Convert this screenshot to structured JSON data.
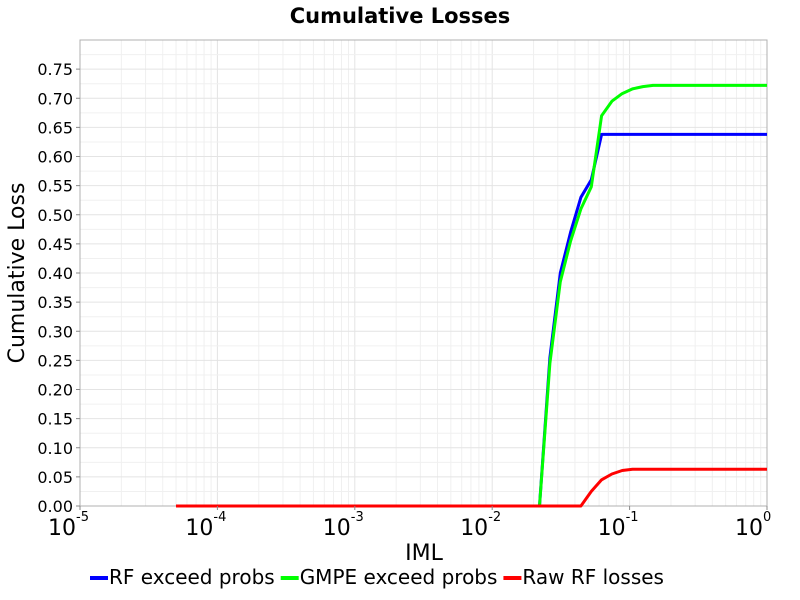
{
  "chart_data": {
    "type": "line",
    "title": "Cumulative Losses",
    "xlabel": "IML",
    "ylabel": "Cumulative Loss",
    "xscale": "log",
    "xlim": [
      1e-05,
      1
    ],
    "ylim": [
      0,
      0.8
    ],
    "grid": true,
    "legend_position": "bottom",
    "x_ticks": [
      {
        "base": "10",
        "exp": "-5",
        "value": 1e-05
      },
      {
        "base": "10",
        "exp": "-4",
        "value": 0.0001
      },
      {
        "base": "10",
        "exp": "-3",
        "value": 0.001
      },
      {
        "base": "10",
        "exp": "-2",
        "value": 0.01
      },
      {
        "base": "10",
        "exp": "-1",
        "value": 0.1
      },
      {
        "base": "10",
        "exp": "0",
        "value": 1
      }
    ],
    "y_ticks": [
      "0.00",
      "0.05",
      "0.10",
      "0.15",
      "0.20",
      "0.25",
      "0.30",
      "0.35",
      "0.40",
      "0.45",
      "0.50",
      "0.55",
      "0.60",
      "0.65",
      "0.70",
      "0.75"
    ],
    "series": [
      {
        "name": "RF exceed probs",
        "color": "#0000ff",
        "x": [
          0.0221,
          0.0263,
          0.0313,
          0.0372,
          0.0442,
          0.0526,
          0.0625,
          0.0743,
          0.0883,
          0.105,
          0.125,
          0.148,
          0.177,
          0.21,
          0.25,
          0.3,
          0.5,
          0.8,
          1.0
        ],
        "y": [
          0,
          0.255,
          0.4,
          0.47,
          0.53,
          0.56,
          0.638,
          0.638,
          0.638,
          0.638,
          0.638,
          0.638,
          0.638,
          0.638,
          0.638,
          0.638,
          0.638,
          0.638,
          0.638
        ]
      },
      {
        "name": "GMPE exceed probs",
        "color": "#00ff00",
        "x": [
          0.0221,
          0.0263,
          0.0313,
          0.0372,
          0.0442,
          0.0526,
          0.0625,
          0.0743,
          0.0883,
          0.105,
          0.125,
          0.148,
          0.177,
          0.21,
          0.25,
          0.3,
          0.5,
          0.8,
          1.0
        ],
        "y": [
          0,
          0.245,
          0.385,
          0.455,
          0.51,
          0.548,
          0.67,
          0.695,
          0.708,
          0.716,
          0.72,
          0.722,
          0.722,
          0.722,
          0.722,
          0.722,
          0.722,
          0.722,
          0.722
        ]
      },
      {
        "name": "Raw RF losses",
        "color": "#ff0000",
        "x": [
          5e-05,
          0.001,
          0.01,
          0.0442,
          0.0526,
          0.0625,
          0.0743,
          0.0883,
          0.105,
          0.125,
          0.148,
          0.177,
          0.21,
          0.5,
          1.0
        ],
        "y": [
          0,
          0,
          0,
          0,
          0.025,
          0.045,
          0.055,
          0.061,
          0.063,
          0.063,
          0.063,
          0.063,
          0.063,
          0.063,
          0.063
        ]
      }
    ]
  }
}
